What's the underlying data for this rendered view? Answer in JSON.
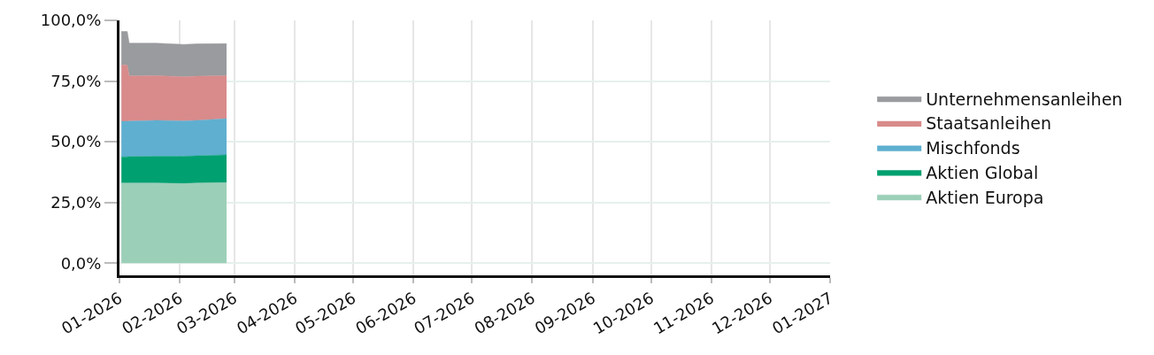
{
  "chart_data": {
    "type": "area",
    "stacked": true,
    "x": [
      "2026-01-02",
      "2026-01-05",
      "2026-01-06",
      "2026-01-20",
      "2026-02-03",
      "2026-02-10",
      "2026-02-25"
    ],
    "series": [
      {
        "name": "Aktien Europa",
        "color": "#9ccfb8",
        "values": [
          33,
          33,
          33,
          33,
          32.8,
          33,
          33.2
        ]
      },
      {
        "name": "Aktien Global",
        "color": "#00a070",
        "values": [
          10.8,
          10.8,
          10.9,
          11,
          11.2,
          11.2,
          11.4
        ]
      },
      {
        "name": "Mischfonds",
        "color": "#5fafd0",
        "values": [
          14.6,
          14.6,
          14.6,
          14.8,
          14.6,
          14.6,
          14.9
        ]
      },
      {
        "name": "Staatsanleihen",
        "color": "#d98b8b",
        "values": [
          23.2,
          23.2,
          18.6,
          18.4,
          18.2,
          18.2,
          17.7
        ]
      },
      {
        "name": "Unternehmensanleihen",
        "color": "#999b9e",
        "values": [
          13.8,
          13.8,
          13.5,
          13.4,
          13.3,
          13.3,
          13.2
        ]
      }
    ],
    "ylim": [
      -5,
      100
    ],
    "yticks": [
      {
        "value": 0,
        "label": "0,0%"
      },
      {
        "value": 25,
        "label": "25,0%"
      },
      {
        "value": 50,
        "label": "50,0%"
      },
      {
        "value": 75,
        "label": "75,0%"
      },
      {
        "value": 100,
        "label": "100,0%"
      }
    ],
    "xlim": [
      "2026-01-01",
      "2027-01-01"
    ],
    "xticks": [
      {
        "value": "2026-01-01",
        "label": "01-2026"
      },
      {
        "value": "2026-02-01",
        "label": "02-2026"
      },
      {
        "value": "2026-03-01",
        "label": "03-2026"
      },
      {
        "value": "2026-04-01",
        "label": "04-2026"
      },
      {
        "value": "2026-05-01",
        "label": "05-2026"
      },
      {
        "value": "2026-06-01",
        "label": "06-2026"
      },
      {
        "value": "2026-07-01",
        "label": "07-2026"
      },
      {
        "value": "2026-08-01",
        "label": "08-2026"
      },
      {
        "value": "2026-09-01",
        "label": "09-2026"
      },
      {
        "value": "2026-10-01",
        "label": "10-2026"
      },
      {
        "value": "2026-11-01",
        "label": "11-2026"
      },
      {
        "value": "2026-12-01",
        "label": "12-2026"
      },
      {
        "value": "2027-01-01",
        "label": "01-2027"
      }
    ],
    "grid": true,
    "legend": "right"
  }
}
